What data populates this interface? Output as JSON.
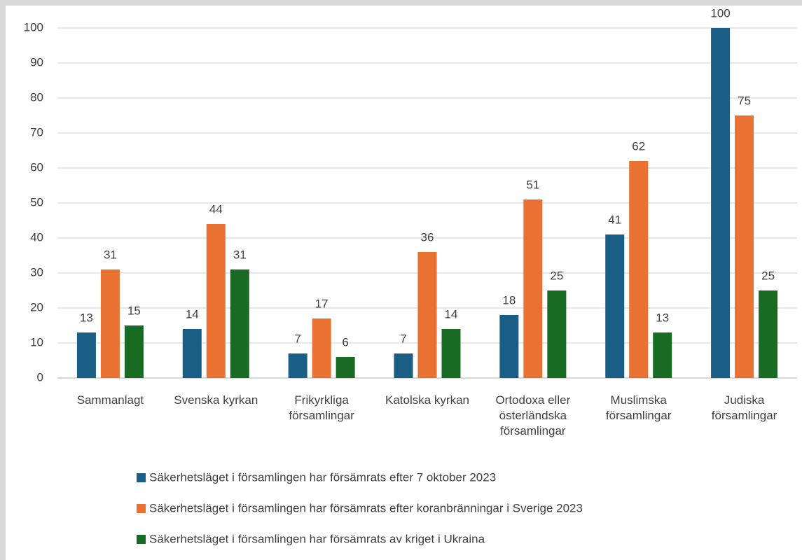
{
  "chart_data": {
    "type": "bar",
    "categories": [
      "Sammanlagt",
      "Svenska kyrkan",
      "Frikyrkliga\nförsamlingar",
      "Katolska kyrkan",
      "Ortodoxa eller\nösterländska\nförsamlingar",
      "Muslimska\nförsamlingar",
      "Judiska\nförsamlingar"
    ],
    "series": [
      {
        "name": "Säkerhetsläget i församlingen har försämrats efter 7 oktober 2023",
        "color": "#1b5e85",
        "values": [
          13,
          14,
          7,
          7,
          18,
          41,
          100
        ]
      },
      {
        "name": "Säkerhetsläget i församlingen har försämrats efter koranbränningar i Sverige 2023",
        "color": "#e97132",
        "values": [
          31,
          44,
          17,
          36,
          51,
          62,
          75
        ]
      },
      {
        "name": "Säkerhetsläget i församlingen har försämrats av kriget i Ukraina",
        "color": "#196b24",
        "values": [
          15,
          31,
          6,
          14,
          25,
          13,
          25
        ]
      }
    ],
    "ylim": [
      0,
      100
    ],
    "yticks": [
      0,
      10,
      20,
      30,
      40,
      50,
      60,
      70,
      80,
      90,
      100
    ],
    "grid": true,
    "legend": "bottom"
  }
}
